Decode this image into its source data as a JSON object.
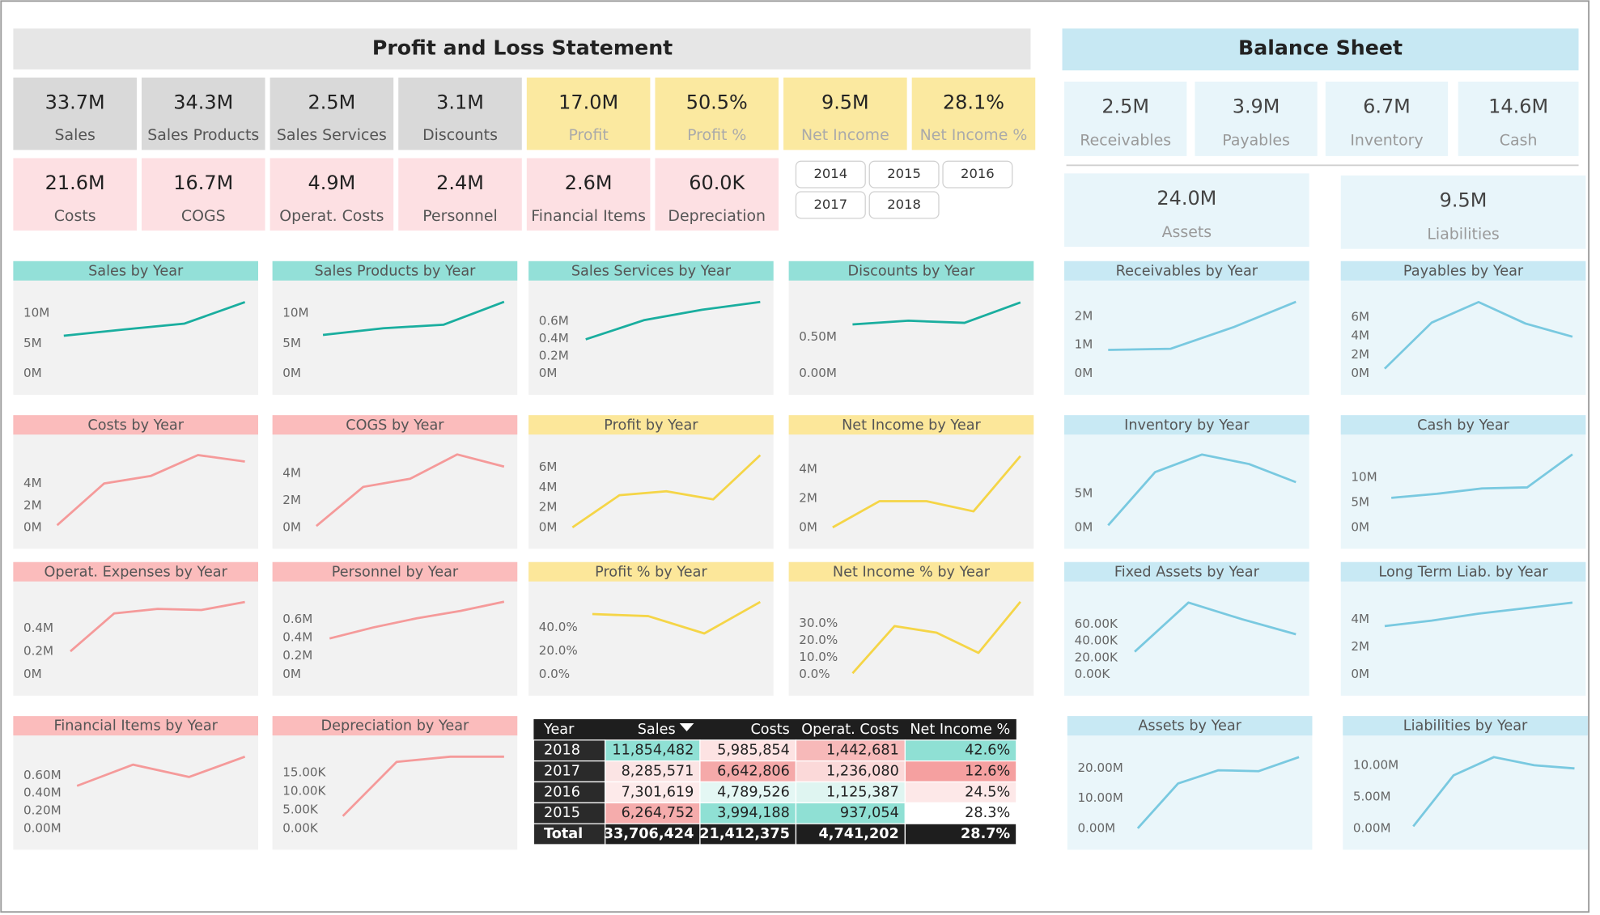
{
  "pl_header": "Profit and Loss Statement",
  "bs_header": "Balance Sheet",
  "pl_kpis": [
    {
      "value": "33.7M",
      "label": "Sales",
      "color": "#d9d9d9"
    },
    {
      "value": "34.3M",
      "label": "Sales Products",
      "color": "#d9d9d9"
    },
    {
      "value": "2.5M",
      "label": "Sales Services",
      "color": "#d9d9d9"
    },
    {
      "value": "3.1M",
      "label": "Discounts",
      "color": "#d9d9d9"
    },
    {
      "value": "17.0M",
      "label": "Profit",
      "color": "#fbe9a0"
    },
    {
      "value": "50.5%",
      "label": "Profit %",
      "color": "#fbe9a0"
    },
    {
      "value": "9.5M",
      "label": "Net Income",
      "color": "#fbe9a0"
    },
    {
      "value": "28.1%",
      "label": "Net Income %",
      "color": "#fbe9a0"
    },
    {
      "value": "21.6M",
      "label": "Costs",
      "color": "#fde0e3"
    },
    {
      "value": "16.7M",
      "label": "COGS",
      "color": "#fde0e3"
    },
    {
      "value": "4.9M",
      "label": "Operat. Costs",
      "color": "#fde0e3"
    },
    {
      "value": "2.4M",
      "label": "Personnel",
      "color": "#fde0e3"
    },
    {
      "value": "2.6M",
      "label": "Financial Items",
      "color": "#fde0e3"
    },
    {
      "value": "60.0K",
      "label": "Depreciation",
      "color": "#fde0e3"
    }
  ],
  "years": [
    "2014",
    "2015",
    "2016",
    "2017",
    "2018"
  ],
  "bs_kpis": [
    {
      "value": "2.5M",
      "label": "Receivables",
      "color": "#e8f5fa"
    },
    {
      "value": "3.9M",
      "label": "Payables",
      "color": "#e8f5fa"
    },
    {
      "value": "6.7M",
      "label": "Inventory",
      "color": "#e8f5fa"
    },
    {
      "value": "14.6M",
      "label": "Cash",
      "color": "#e8f5fa"
    },
    {
      "value": "24.0M",
      "label": "Assets",
      "color": "#e8f5fa"
    },
    {
      "value": "9.5M",
      "label": "Liabilities",
      "color": "#e8f5fa"
    }
  ],
  "chart_data": [
    {
      "type": "line",
      "title": "Sales by Year",
      "values": [
        6.26,
        7.3,
        8.29,
        11.85
      ],
      "color": "#1aae9f",
      "title_color": "#93e0d8",
      "background": "#f2f2f2",
      "ylim": [
        0,
        12.9
      ],
      "yticks": [
        {
          "value": 0,
          "label": "0M"
        },
        {
          "value": 5,
          "label": "5M"
        },
        {
          "value": 10,
          "label": "10M"
        }
      ]
    },
    {
      "type": "line",
      "title": "Sales Products by Year",
      "values": [
        6.4,
        7.5,
        8.1,
        11.9
      ],
      "color": "#1aae9f",
      "title_color": "#93e0d8",
      "background": "#f2f2f2",
      "ylim": [
        0,
        12.9
      ],
      "yticks": [
        {
          "value": 0,
          "label": "0M"
        },
        {
          "value": 5,
          "label": "5M"
        },
        {
          "value": 10,
          "label": "10M"
        }
      ]
    },
    {
      "type": "line",
      "title": "Sales Services by Year",
      "values": [
        0.39,
        0.61,
        0.73,
        0.82
      ],
      "color": "#1aae9f",
      "title_color": "#93e0d8",
      "background": "#f2f2f2",
      "ylim": [
        0,
        0.89
      ],
      "yticks": [
        {
          "value": 0,
          "label": "0M"
        },
        {
          "value": 0.2,
          "label": "0.2M"
        },
        {
          "value": 0.4,
          "label": "0.4M"
        },
        {
          "value": 0.6,
          "label": "0.6M"
        }
      ]
    },
    {
      "type": "line",
      "title": "Discounts by Year",
      "values": [
        0.67,
        0.72,
        0.69,
        0.97
      ],
      "color": "#1aae9f",
      "title_color": "#93e0d8",
      "background": "#f2f2f2",
      "ylim": [
        0,
        1.06
      ],
      "yticks": [
        {
          "value": 0,
          "label": "0.00M"
        },
        {
          "value": 0.5,
          "label": "0.50M"
        }
      ]
    },
    {
      "type": "line",
      "title": "Receivables by Year",
      "values": [
        0.82,
        0.86,
        1.61,
        2.5
      ],
      "color": "#79c9e0",
      "title_color": "#c8e9f4",
      "background": "#eaf6fa",
      "ylim": [
        0,
        2.71
      ],
      "yticks": [
        {
          "value": 0,
          "label": "0M"
        },
        {
          "value": 1,
          "label": "1M"
        },
        {
          "value": 2,
          "label": "2M"
        }
      ]
    },
    {
      "type": "line",
      "title": "Payables by Year",
      "values": [
        0.5,
        5.4,
        7.6,
        5.3,
        3.9
      ],
      "color": "#79c9e0",
      "title_color": "#c8e9f4",
      "background": "#eaf6fa",
      "ylim": [
        0,
        8.26
      ],
      "yticks": [
        {
          "value": 0,
          "label": "0M"
        },
        {
          "value": 2,
          "label": "2M"
        },
        {
          "value": 4,
          "label": "4M"
        },
        {
          "value": 6,
          "label": "6M"
        }
      ]
    },
    {
      "type": "line",
      "title": "Costs by Year",
      "values": [
        0.2,
        4.0,
        4.7,
        6.6,
        6.0
      ],
      "color": "#f59a9a",
      "title_color": "#fbbcbc",
      "background": "#f2f2f2",
      "ylim": [
        0,
        7.07
      ],
      "yticks": [
        {
          "value": 0,
          "label": "0M"
        },
        {
          "value": 2,
          "label": "2M"
        },
        {
          "value": 4,
          "label": "4M"
        }
      ]
    },
    {
      "type": "line",
      "title": "COGS by Year",
      "values": [
        0.1,
        3.0,
        3.6,
        5.4,
        4.5
      ],
      "color": "#f59a9a",
      "title_color": "#fbbcbc",
      "background": "#f2f2f2",
      "ylim": [
        0,
        5.74
      ],
      "yticks": [
        {
          "value": 0,
          "label": "0M"
        },
        {
          "value": 2,
          "label": "2M"
        },
        {
          "value": 4,
          "label": "4M"
        }
      ]
    },
    {
      "type": "line",
      "title": "Profit by Year",
      "values": [
        0.0,
        3.2,
        3.6,
        2.8,
        7.2
      ],
      "color": "#f5d547",
      "title_color": "#fce79a",
      "background": "#f2f2f2",
      "ylim": [
        0,
        7.73
      ],
      "yticks": [
        {
          "value": 0,
          "label": "0M"
        },
        {
          "value": 2,
          "label": "2M"
        },
        {
          "value": 4,
          "label": "4M"
        },
        {
          "value": 6,
          "label": "6M"
        }
      ]
    },
    {
      "type": "line",
      "title": "Net Income by Year",
      "values": [
        0.0,
        1.8,
        1.8,
        1.1,
        4.9
      ],
      "color": "#f5d547",
      "title_color": "#fce79a",
      "background": "#f2f2f2",
      "ylim": [
        0,
        5.33
      ],
      "yticks": [
        {
          "value": 0,
          "label": "0M"
        },
        {
          "value": 2,
          "label": "2M"
        },
        {
          "value": 4,
          "label": "4M"
        }
      ]
    },
    {
      "type": "line",
      "title": "Inventory by Year",
      "values": [
        0.3,
        8.2,
        10.8,
        9.4,
        6.7
      ],
      "color": "#79c9e0",
      "title_color": "#c8e9f4",
      "background": "#eaf6fa",
      "ylim": [
        0,
        11.5
      ],
      "yticks": [
        {
          "value": 0,
          "label": "0M"
        },
        {
          "value": 5,
          "label": "5M"
        }
      ]
    },
    {
      "type": "line",
      "title": "Cash by Year",
      "values": [
        5.9,
        6.7,
        7.8,
        8.0,
        14.6
      ],
      "color": "#79c9e0",
      "title_color": "#c8e9f4",
      "background": "#eaf6fa",
      "ylim": [
        0,
        15.5
      ],
      "yticks": [
        {
          "value": 0,
          "label": "0M"
        },
        {
          "value": 5,
          "label": "5M"
        },
        {
          "value": 10,
          "label": "10M"
        }
      ]
    },
    {
      "type": "line",
      "title": "Operat. Expenses by Year",
      "values": [
        0.2,
        0.53,
        0.57,
        0.56,
        0.63
      ],
      "color": "#f59a9a",
      "title_color": "#fbbcbc",
      "background": "#f2f2f2",
      "ylim": [
        0,
        0.676
      ],
      "yticks": [
        {
          "value": 0,
          "label": "0M"
        },
        {
          "value": 0.2,
          "label": "0.2M"
        },
        {
          "value": 0.4,
          "label": "0.4M"
        }
      ]
    },
    {
      "type": "line",
      "title": "Personnel by Year",
      "values": [
        0.39,
        0.51,
        0.61,
        0.69,
        0.79
      ],
      "color": "#f59a9a",
      "title_color": "#fbbcbc",
      "background": "#f2f2f2",
      "ylim": [
        0,
        0.844
      ],
      "yticks": [
        {
          "value": 0,
          "label": "0M"
        },
        {
          "value": 0.2,
          "label": "0.2M"
        },
        {
          "value": 0.4,
          "label": "0.4M"
        },
        {
          "value": 0.6,
          "label": "0.6M"
        }
      ]
    },
    {
      "type": "line",
      "title": "Profit % by Year",
      "values": [
        51.3,
        49.6,
        34.8,
        61.7
      ],
      "color": "#f5d547",
      "title_color": "#fce79a",
      "background": "#f2f2f2",
      "ylim": [
        0,
        66.1
      ],
      "yticks": [
        {
          "value": 0,
          "label": "0.0%"
        },
        {
          "value": 20,
          "label": "20.0%"
        },
        {
          "value": 40,
          "label": "40.0%"
        }
      ]
    },
    {
      "type": "line",
      "title": "Net Income % by Year",
      "values": [
        0.6,
        28.3,
        24.5,
        12.6,
        42.6
      ],
      "color": "#f5d547",
      "title_color": "#fce79a",
      "background": "#f2f2f2",
      "ylim": [
        0,
        45.6
      ],
      "yticks": [
        {
          "value": 0,
          "label": "0.0%"
        },
        {
          "value": 10,
          "label": "10.0%"
        },
        {
          "value": 20,
          "label": "20.0%"
        },
        {
          "value": 30,
          "label": "30.0%"
        }
      ]
    },
    {
      "type": "line",
      "title": "Fixed Assets by Year",
      "values": [
        27,
        86,
        66,
        48
      ],
      "color": "#79c9e0",
      "title_color": "#c8e9f4",
      "background": "#eaf6fa",
      "ylim": [
        0,
        93
      ],
      "yticks": [
        {
          "value": 0,
          "label": "0.00K"
        },
        {
          "value": 20,
          "label": "20.00K"
        },
        {
          "value": 40,
          "label": "40.00K"
        },
        {
          "value": 60,
          "label": "60.00K"
        }
      ]
    },
    {
      "type": "line",
      "title": "Long Term Liab. by Year",
      "values": [
        3.5,
        3.9,
        4.4,
        4.8,
        5.2
      ],
      "color": "#79c9e0",
      "title_color": "#c8e9f4",
      "background": "#eaf6fa",
      "ylim": [
        0,
        5.63
      ],
      "yticks": [
        {
          "value": 0,
          "label": "0M"
        },
        {
          "value": 2,
          "label": "2M"
        },
        {
          "value": 4,
          "label": "4M"
        }
      ]
    },
    {
      "type": "line",
      "title": "Financial Items by Year",
      "values": [
        0.48,
        0.72,
        0.58,
        0.81
      ],
      "color": "#f59a9a",
      "title_color": "#fbbcbc",
      "background": "#f2f2f2",
      "ylim": [
        0,
        0.877
      ],
      "yticks": [
        {
          "value": 0,
          "label": "0.00M"
        },
        {
          "value": 0.2,
          "label": "0.20M"
        },
        {
          "value": 0.4,
          "label": "0.40M"
        },
        {
          "value": 0.6,
          "label": "0.60M"
        }
      ]
    },
    {
      "type": "line",
      "title": "Depreciation by Year",
      "values": [
        3.3,
        17.9,
        19.3,
        19.3
      ],
      "color": "#f59a9a",
      "title_color": "#fbbcbc",
      "background": "#f2f2f2",
      "ylim": [
        0,
        20.9
      ],
      "yticks": [
        {
          "value": 0,
          "label": "0.00K"
        },
        {
          "value": 5,
          "label": "5.00K"
        },
        {
          "value": 10,
          "label": "10.00K"
        },
        {
          "value": 15,
          "label": "15.00K"
        }
      ]
    },
    {
      "type": "line",
      "title": "Assets by Year",
      "values": [
        0.0,
        14.9,
        19.3,
        19.0,
        23.7
      ],
      "color": "#79c9e0",
      "title_color": "#c8e9f4",
      "background": "#eaf6fa",
      "ylim": [
        0,
        25.8
      ],
      "yticks": [
        {
          "value": 0,
          "label": "0.00M"
        },
        {
          "value": 10,
          "label": "10.00M"
        },
        {
          "value": 20,
          "label": "20.00M"
        }
      ]
    },
    {
      "type": "line",
      "title": "Liabilities by Year",
      "values": [
        0.3,
        8.4,
        11.3,
        10.0,
        9.5
      ],
      "color": "#79c9e0",
      "title_color": "#c8e9f4",
      "background": "#eaf6fa",
      "ylim": [
        0,
        12.3
      ],
      "yticks": [
        {
          "value": 0,
          "label": "0.00M"
        },
        {
          "value": 5,
          "label": "5.00M"
        },
        {
          "value": 10,
          "label": "10.00M"
        }
      ]
    }
  ],
  "table": {
    "header": [
      "Year",
      "Sales",
      "Costs",
      "Operat. Costs",
      "Net Income %"
    ],
    "rows": [
      {
        "year": "2018",
        "cells": [
          "11,854,482",
          "5,985,854",
          "1,442,681",
          "42.6%"
        ],
        "colors": [
          "#8fe0d4",
          "#fde3e3",
          "#f7b9b9",
          "#8fe0d4"
        ]
      },
      {
        "year": "2017",
        "cells": [
          "8,285,571",
          "6,642,806",
          "1,236,080",
          "12.6%"
        ],
        "colors": [
          "#fbe4e4",
          "#f5a9a9",
          "#fbd9d9",
          "#f5a0a0"
        ]
      },
      {
        "year": "2016",
        "cells": [
          "7,301,619",
          "4,789,526",
          "1,125,387",
          "24.5%"
        ],
        "colors": [
          "#fdeaea",
          "#e4f7f4",
          "#dff5f1",
          "#fde8e8"
        ]
      },
      {
        "year": "2015",
        "cells": [
          "6,264,752",
          "3,994,188",
          "937,054",
          "28.3%"
        ],
        "colors": [
          "#f5acac",
          "#8fe0d4",
          "#8fe0d4",
          "#ffffff"
        ]
      }
    ],
    "total": {
      "year": "Total",
      "cells": [
        "33,706,424",
        "21,412,375",
        "4,741,202",
        "28.7%"
      ]
    }
  }
}
